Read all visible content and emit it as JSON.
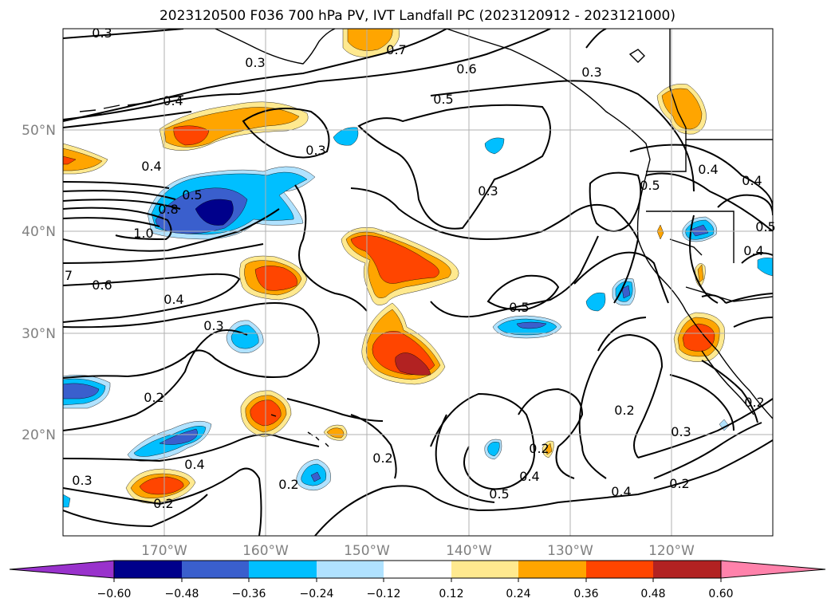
{
  "title": "2023120500 F036 700 hPa PV, IVT Landfall PC (2023120912 - 2023121000)",
  "axes": {
    "lat_labels": [
      "50°N",
      "40°N",
      "30°N",
      "20°N"
    ],
    "lat_values": [
      50,
      40,
      30,
      20
    ],
    "lon_labels": [
      "170°W",
      "160°W",
      "150°W",
      "140°W",
      "130°W",
      "120°W"
    ],
    "lon_values": [
      -170,
      -160,
      -150,
      -140,
      -130,
      -120
    ],
    "lon_range": [
      -180,
      -110
    ],
    "lat_range": [
      10,
      60
    ],
    "grid": true
  },
  "colorbar": {
    "extend": "both",
    "bounds": [
      -0.6,
      -0.48,
      -0.36,
      -0.24,
      -0.12,
      0.12,
      0.24,
      0.36,
      0.48,
      0.6
    ],
    "tick_labels": [
      "−0.60",
      "−0.48",
      "−0.36",
      "−0.24",
      "−0.12",
      "0.12",
      "0.24",
      "0.36",
      "0.48",
      "0.60"
    ],
    "colors": [
      "#9932cc",
      "#00008b",
      "#3a5fcd",
      "#00bfff",
      "#b0e2ff",
      "#ffffff",
      "#ffe98f",
      "#ffa500",
      "#ff4500",
      "#b22222",
      "#ff82ab"
    ]
  },
  "contour_labels": [
    "0.3",
    "0.3",
    "0.7",
    "0.6",
    "0.5",
    "0.3",
    "0.4",
    "0.3",
    "0.4",
    "0.5",
    "0.8",
    "1.0",
    "0.3",
    "0.5",
    "0.4",
    "0.4",
    "0.5",
    "7",
    "0.6",
    "0.4",
    "0.3",
    "0.5",
    "0.2",
    "0.2",
    "0.3",
    "0.2",
    "0.4",
    "0.2",
    "0.2",
    "0.5",
    "0.4",
    "0.2",
    "0.2",
    "0.3",
    "0.4",
    "0.2",
    "0.4"
  ]
}
